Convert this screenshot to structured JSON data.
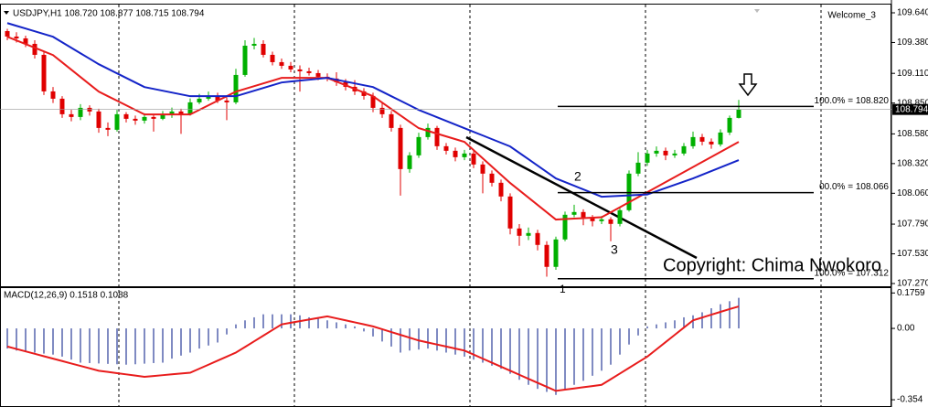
{
  "chart_data": [
    {
      "type": "candlestick",
      "header": "USDJPY,H1  108.720 108.877 108.715 108.794",
      "account": "Welcome_3",
      "ylim": [
        107.246,
        109.712
      ],
      "yticks": [
        {
          "value": 109.64,
          "label": "109.640"
        },
        {
          "value": 109.38,
          "label": "109.380"
        },
        {
          "value": 109.11,
          "label": "109.110"
        },
        {
          "value": 108.85,
          "label": "108.850"
        },
        {
          "value": 108.58,
          "label": "108.580"
        },
        {
          "value": 108.32,
          "label": "108.320"
        },
        {
          "value": 108.06,
          "label": "108.060"
        },
        {
          "value": 107.79,
          "label": "107.790"
        },
        {
          "value": 107.53,
          "label": "107.530"
        },
        {
          "value": 107.27,
          "label": "107.270"
        }
      ],
      "up_color": "#00b000",
      "down_color": "#e00000",
      "candles": [
        [
          109.48,
          109.5,
          109.4,
          109.432
        ],
        [
          109.432,
          109.47,
          109.38,
          109.416
        ],
        [
          109.416,
          109.44,
          109.34,
          109.368
        ],
        [
          109.368,
          109.4,
          109.24,
          109.272
        ],
        [
          109.272,
          109.3,
          108.92,
          108.952
        ],
        [
          108.952,
          108.99,
          108.85,
          108.888
        ],
        [
          108.888,
          108.91,
          108.72,
          108.752
        ],
        [
          108.752,
          108.79,
          108.69,
          108.728
        ],
        [
          108.728,
          108.84,
          108.7,
          108.808
        ],
        [
          108.808,
          108.83,
          108.74,
          108.776
        ],
        [
          108.776,
          108.8,
          108.59,
          108.632
        ],
        [
          108.632,
          108.68,
          108.56,
          108.616
        ],
        [
          108.616,
          108.79,
          108.6,
          108.752
        ],
        [
          108.752,
          108.77,
          108.68,
          108.712
        ],
        [
          108.712,
          108.74,
          108.66,
          108.696
        ],
        [
          108.696,
          108.76,
          108.67,
          108.728
        ],
        [
          108.728,
          108.75,
          108.6,
          108.712
        ],
        [
          108.712,
          108.78,
          108.7,
          108.744
        ],
        [
          108.744,
          108.81,
          108.72,
          108.776
        ],
        [
          108.776,
          108.8,
          108.58,
          108.752
        ],
        [
          108.752,
          108.89,
          108.74,
          108.856
        ],
        [
          108.856,
          108.93,
          108.84,
          108.888
        ],
        [
          108.888,
          108.95,
          108.87,
          108.912
        ],
        [
          108.912,
          108.94,
          108.85,
          108.872
        ],
        [
          108.872,
          108.9,
          108.7,
          108.856
        ],
        [
          108.856,
          109.15,
          108.84,
          109.096
        ],
        [
          109.096,
          109.4,
          109.08,
          109.352
        ],
        [
          109.352,
          109.42,
          109.32,
          109.368
        ],
        [
          109.368,
          109.4,
          109.25,
          109.272
        ],
        [
          109.272,
          109.3,
          109.18,
          109.208
        ],
        [
          109.208,
          109.24,
          109.15,
          109.176
        ],
        [
          109.176,
          109.21,
          109.12,
          109.144
        ],
        [
          109.144,
          109.18,
          108.95,
          109.128
        ],
        [
          109.128,
          109.16,
          109.09,
          109.112
        ],
        [
          109.112,
          109.14,
          109.05,
          109.08
        ],
        [
          109.08,
          109.11,
          109.04,
          109.064
        ],
        [
          109.064,
          109.12,
          109.0,
          109.032
        ],
        [
          109.032,
          109.06,
          108.96,
          108.992
        ],
        [
          108.992,
          109.05,
          108.92,
          108.952
        ],
        [
          108.952,
          108.98,
          108.88,
          108.912
        ],
        [
          108.912,
          108.94,
          108.77,
          108.808
        ],
        [
          108.808,
          108.85,
          108.72,
          108.752
        ],
        [
          108.752,
          108.78,
          108.6,
          108.632
        ],
        [
          108.632,
          108.66,
          108.04,
          108.272
        ],
        [
          108.272,
          108.42,
          108.24,
          108.392
        ],
        [
          108.392,
          108.59,
          108.37,
          108.552
        ],
        [
          108.552,
          108.67,
          108.53,
          108.632
        ],
        [
          108.632,
          108.65,
          108.44,
          108.472
        ],
        [
          108.472,
          108.5,
          108.4,
          108.432
        ],
        [
          108.432,
          108.46,
          108.34,
          108.376
        ],
        [
          108.376,
          108.44,
          108.35,
          108.408
        ],
        [
          108.408,
          108.43,
          108.28,
          108.312
        ],
        [
          108.312,
          108.34,
          108.06,
          108.232
        ],
        [
          108.232,
          108.26,
          108.12,
          108.152
        ],
        [
          108.152,
          108.18,
          107.99,
          108.032
        ],
        [
          108.032,
          108.06,
          107.7,
          107.752
        ],
        [
          107.752,
          107.79,
          107.6,
          107.688
        ],
        [
          107.688,
          107.76,
          107.65,
          107.712
        ],
        [
          107.712,
          107.74,
          107.56,
          107.608
        ],
        [
          107.608,
          107.64,
          107.33,
          107.416
        ],
        [
          107.416,
          107.68,
          107.39,
          107.656
        ],
        [
          107.656,
          107.9,
          107.64,
          107.872
        ],
        [
          107.872,
          107.96,
          107.85,
          107.896
        ],
        [
          107.896,
          107.92,
          107.78,
          107.848
        ],
        [
          107.848,
          107.87,
          107.77,
          107.816
        ],
        [
          107.816,
          107.86,
          107.79,
          107.832
        ],
        [
          107.832,
          107.85,
          107.64,
          107.792
        ],
        [
          107.792,
          107.94,
          107.77,
          107.912
        ],
        [
          107.912,
          108.26,
          107.9,
          108.232
        ],
        [
          108.232,
          108.42,
          108.21,
          108.328
        ],
        [
          108.328,
          108.44,
          108.3,
          108.408
        ],
        [
          108.408,
          108.47,
          108.38,
          108.432
        ],
        [
          108.432,
          108.46,
          108.35,
          108.392
        ],
        [
          108.392,
          108.44,
          108.37,
          108.408
        ],
        [
          108.408,
          108.5,
          108.39,
          108.472
        ],
        [
          108.472,
          108.6,
          108.45,
          108.552
        ],
        [
          108.552,
          108.58,
          108.48,
          108.512
        ],
        [
          108.512,
          108.54,
          108.45,
          108.488
        ],
        [
          108.488,
          108.62,
          108.47,
          108.592
        ],
        [
          108.592,
          108.74,
          108.57,
          108.72
        ],
        [
          108.72,
          108.877,
          108.715,
          108.794
        ]
      ],
      "lines": [
        {
          "color": "#e81c1c",
          "values": [
            109.43,
            109.398,
            109.366,
            109.334,
            109.302,
            109.27,
            109.206,
            109.142,
            109.078,
            109.014,
            108.95,
            108.91,
            108.87,
            108.83,
            108.79,
            108.75,
            108.75,
            108.75,
            108.75,
            108.75,
            108.75,
            108.79,
            108.83,
            108.87,
            108.91,
            108.95,
            108.974,
            108.998,
            109.022,
            109.046,
            109.07,
            109.07,
            109.07,
            109.07,
            109.07,
            109.07,
            109.038,
            109.006,
            108.974,
            108.942,
            108.91,
            108.854,
            108.798,
            108.742,
            108.686,
            108.63,
            108.606,
            108.582,
            108.558,
            108.534,
            108.51,
            108.438,
            108.366,
            108.294,
            108.222,
            108.15,
            108.086,
            108.022,
            107.958,
            107.894,
            107.83,
            107.834,
            107.838,
            107.842,
            107.846,
            107.85,
            107.894,
            107.938,
            107.982,
            108.026,
            108.07,
            108.114,
            108.158,
            108.202,
            108.246,
            108.29,
            108.334,
            108.378,
            108.422,
            108.466,
            108.51
          ]
        },
        {
          "color": "#1424c8",
          "values": [
            109.55,
            109.526,
            109.502,
            109.478,
            109.454,
            109.43,
            109.382,
            109.334,
            109.286,
            109.238,
            109.19,
            109.15,
            109.11,
            109.07,
            109.03,
            108.99,
            108.974,
            108.958,
            108.942,
            108.926,
            108.91,
            108.91,
            108.91,
            108.91,
            108.91,
            108.91,
            108.934,
            108.958,
            108.982,
            109.006,
            109.03,
            109.038,
            109.046,
            109.054,
            109.062,
            109.07,
            109.054,
            109.038,
            109.022,
            109.006,
            108.99,
            108.95,
            108.91,
            108.87,
            108.83,
            108.79,
            108.758,
            108.726,
            108.694,
            108.662,
            108.63,
            108.598,
            108.566,
            108.534,
            108.502,
            108.47,
            108.414,
            108.358,
            108.302,
            108.246,
            108.19,
            108.158,
            108.126,
            108.094,
            108.062,
            108.03,
            108.034,
            108.038,
            108.042,
            108.046,
            108.05,
            108.078,
            108.106,
            108.134,
            108.162,
            108.19,
            108.222,
            108.254,
            108.286,
            108.318,
            108.35
          ]
        }
      ],
      "fib_levels": [
        {
          "value": 108.82,
          "label": "100.0% = 108.820"
        },
        {
          "value": 108.066,
          "label": "00.0% = 108.066"
        },
        {
          "value": 107.312,
          "label": "100.0% = 107.312"
        }
      ],
      "annotations": [
        "1",
        "2",
        "3"
      ],
      "watermark": "Copyright: Chima Nwokoro"
    },
    {
      "type": "macd",
      "title": "MACD(12,26,9) 0.1518 0.1088",
      "ylim": [
        -0.39,
        0.2
      ],
      "yticks": [
        0.1759,
        {
          "value": 0,
          "label": "0.00"
        },
        -0.354
      ],
      "histogram_color": "#2a3d9a",
      "signal_color": "#e81c1c",
      "histogram": [
        -0.1,
        -0.11,
        -0.115,
        -0.12,
        -0.125,
        -0.13,
        -0.14,
        -0.155,
        -0.17,
        -0.172,
        -0.174,
        -0.176,
        -0.178,
        -0.18,
        -0.178,
        -0.175,
        -0.172,
        -0.17,
        -0.15,
        -0.135,
        -0.12,
        -0.1,
        -0.085,
        -0.07,
        -0.03,
        0.02,
        0.04,
        0.055,
        0.07,
        0.07,
        0.07,
        0.07,
        0.065,
        0.055,
        0.048,
        0.04,
        0.03,
        0.02,
        0.01,
        -0.015,
        -0.04,
        -0.065,
        -0.09,
        -0.12,
        -0.11,
        -0.105,
        -0.1,
        -0.11,
        -0.12,
        -0.13,
        -0.14,
        -0.155,
        -0.17,
        -0.185,
        -0.2,
        -0.225,
        -0.255,
        -0.28,
        -0.3,
        -0.315,
        -0.33,
        -0.305,
        -0.28,
        -0.26,
        -0.235,
        -0.21,
        -0.18,
        -0.13,
        -0.08,
        -0.035,
        0.01,
        0.02,
        0.03,
        0.04,
        0.055,
        0.065,
        0.08,
        0.1,
        0.12,
        0.135,
        0.1518
      ],
      "signal": [
        -0.09,
        -0.102,
        -0.114,
        -0.126,
        -0.138,
        -0.15,
        -0.162,
        -0.174,
        -0.186,
        -0.198,
        -0.21,
        -0.216,
        -0.222,
        -0.228,
        -0.234,
        -0.24,
        -0.236,
        -0.232,
        -0.228,
        -0.224,
        -0.22,
        -0.2,
        -0.18,
        -0.16,
        -0.14,
        -0.12,
        -0.092,
        -0.064,
        -0.036,
        -0.008,
        0.02,
        0.028,
        0.036,
        0.044,
        0.052,
        0.06,
        0.05,
        0.04,
        0.03,
        0.02,
        0.01,
        -0.004,
        -0.018,
        -0.032,
        -0.046,
        -0.06,
        -0.07,
        -0.08,
        -0.09,
        -0.1,
        -0.11,
        -0.13,
        -0.15,
        -0.17,
        -0.19,
        -0.21,
        -0.23,
        -0.25,
        -0.27,
        -0.29,
        -0.31,
        -0.304,
        -0.298,
        -0.292,
        -0.286,
        -0.28,
        -0.252,
        -0.224,
        -0.196,
        -0.168,
        -0.14,
        -0.104,
        -0.068,
        -0.032,
        0.004,
        0.04,
        0.054,
        0.068,
        0.082,
        0.096,
        0.1088
      ]
    }
  ]
}
